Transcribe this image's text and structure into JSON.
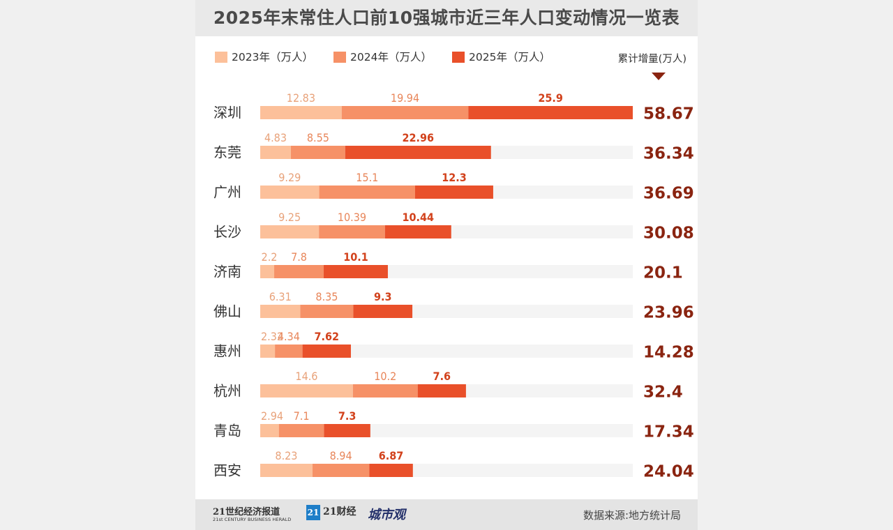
{
  "title": "2025年末常住人口前10强城市近三年人口变动情况一览表",
  "legend": {
    "items": [
      {
        "label": "2023年（万人）",
        "color": "#fcc09a"
      },
      {
        "label": "2024年（万人）",
        "color": "#f69167"
      },
      {
        "label": "2025年（万人）",
        "color": "#e9502a"
      }
    ],
    "total_header": "累计增量(万人)"
  },
  "colors": {
    "track": "#f4f4f4",
    "label_2023": "#e8a27a",
    "label_2024": "#e8865a",
    "label_2025": "#d2421c",
    "total": "#8a2410"
  },
  "chart_data": {
    "type": "bar",
    "orientation": "horizontal",
    "stacked": true,
    "categories": [
      "深圳",
      "东莞",
      "广州",
      "长沙",
      "济南",
      "佛山",
      "惠州",
      "杭州",
      "青岛",
      "西安"
    ],
    "series": [
      {
        "name": "2023年（万人）",
        "values": [
          12.83,
          4.83,
          9.29,
          9.25,
          2.2,
          6.31,
          2.32,
          14.6,
          2.94,
          8.23
        ]
      },
      {
        "name": "2024年（万人）",
        "values": [
          19.94,
          8.55,
          15.1,
          10.39,
          7.8,
          8.35,
          4.34,
          10.2,
          7.1,
          8.94
        ]
      },
      {
        "name": "2025年（万人）",
        "values": [
          25.9,
          22.96,
          12.3,
          10.44,
          10.1,
          9.3,
          7.62,
          7.6,
          7.3,
          6.87
        ]
      }
    ],
    "value_labels": [
      [
        "12.83",
        "19.94",
        "25.9"
      ],
      [
        "4.83",
        "8.55",
        "22.96"
      ],
      [
        "9.29",
        "15.1",
        "12.3"
      ],
      [
        "9.25",
        "10.39",
        "10.44"
      ],
      [
        "2.2",
        "7.8",
        "10.1"
      ],
      [
        "6.31",
        "8.35",
        "9.3"
      ],
      [
        "2.32",
        "4.34",
        "7.62"
      ],
      [
        "14.6",
        "10.2",
        "7.6"
      ],
      [
        "2.94",
        "7.1",
        "7.3"
      ],
      [
        "8.23",
        "8.94",
        "6.87"
      ]
    ],
    "totals": [
      "58.67",
      "36.34",
      "36.69",
      "30.08",
      "20.1",
      "23.96",
      "14.28",
      "32.4",
      "17.34",
      "24.04"
    ],
    "xlim": [
      0,
      58.67
    ],
    "grid": false
  },
  "footer": {
    "logo_herald_cn": "21世纪经济报道",
    "logo_herald_en": "21st CENTURY BUSINESS HERALD",
    "logo_21": "21",
    "logo_caijing": "21财经",
    "logo_chengshiguan": "城市观",
    "source": "数据来源:地方统计局"
  }
}
